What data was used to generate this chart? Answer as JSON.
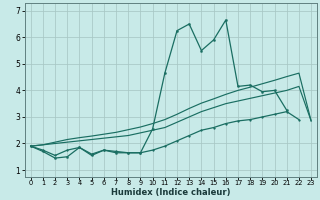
{
  "bg_color": "#c8eae8",
  "grid_color_major": "#a8c8c5",
  "grid_color_minor": "#bcdcda",
  "line_color": "#1a6e62",
  "xlabel": "Humidex (Indice chaleur)",
  "xlim": [
    -0.5,
    23.5
  ],
  "ylim": [
    0.75,
    7.3
  ],
  "xticks": [
    0,
    1,
    2,
    3,
    4,
    5,
    6,
    7,
    8,
    9,
    10,
    11,
    12,
    13,
    14,
    15,
    16,
    17,
    18,
    19,
    20,
    21,
    22,
    23
  ],
  "yticks": [
    1,
    2,
    3,
    4,
    5,
    6,
    7
  ],
  "series": [
    {
      "x": [
        0,
        1,
        2,
        3,
        4,
        5,
        6,
        7,
        8,
        9,
        10,
        11,
        12,
        13,
        14,
        15,
        16,
        17,
        18,
        19,
        20,
        21
      ],
      "y": [
        1.9,
        1.7,
        1.45,
        1.5,
        1.85,
        1.55,
        1.75,
        1.65,
        1.65,
        1.65,
        2.55,
        4.65,
        6.25,
        6.5,
        5.5,
        5.9,
        6.65,
        4.15,
        4.2,
        3.95,
        4.0,
        3.25
      ],
      "marker": true,
      "lw": 0.9,
      "ms": 3.0
    },
    {
      "x": [
        0,
        1,
        2,
        3,
        4,
        5,
        6,
        7,
        8,
        9,
        10,
        11,
        12,
        13,
        14,
        15,
        16,
        17,
        18,
        19,
        20,
        21,
        22
      ],
      "y": [
        1.9,
        1.75,
        1.55,
        1.75,
        1.85,
        1.6,
        1.75,
        1.7,
        1.65,
        1.65,
        1.75,
        1.9,
        2.1,
        2.3,
        2.5,
        2.6,
        2.75,
        2.85,
        2.9,
        3.0,
        3.1,
        3.2,
        2.9
      ],
      "marker": true,
      "lw": 0.9,
      "ms": 2.5
    },
    {
      "x": [
        0,
        1,
        2,
        3,
        4,
        5,
        6,
        7,
        8,
        9,
        10,
        11,
        12,
        13,
        14,
        15,
        16,
        17,
        18,
        19,
        20,
        21,
        22,
        23
      ],
      "y": [
        1.9,
        1.95,
        2.0,
        2.05,
        2.1,
        2.15,
        2.2,
        2.25,
        2.3,
        2.4,
        2.5,
        2.6,
        2.8,
        3.0,
        3.2,
        3.35,
        3.5,
        3.6,
        3.7,
        3.8,
        3.9,
        4.0,
        4.15,
        2.85
      ],
      "marker": false,
      "lw": 0.85,
      "ms": 0
    },
    {
      "x": [
        0,
        1,
        2,
        3,
        4,
        5,
        6,
        7,
        8,
        9,
        10,
        11,
        12,
        13,
        14,
        15,
        16,
        17,
        18,
        19,
        20,
        21,
        22,
        23
      ],
      "y": [
        1.9,
        1.95,
        2.05,
        2.15,
        2.22,
        2.28,
        2.35,
        2.42,
        2.52,
        2.62,
        2.75,
        2.9,
        3.1,
        3.32,
        3.52,
        3.68,
        3.85,
        4.0,
        4.12,
        4.25,
        4.38,
        4.52,
        4.65,
        2.85
      ],
      "marker": false,
      "lw": 0.85,
      "ms": 0
    }
  ]
}
